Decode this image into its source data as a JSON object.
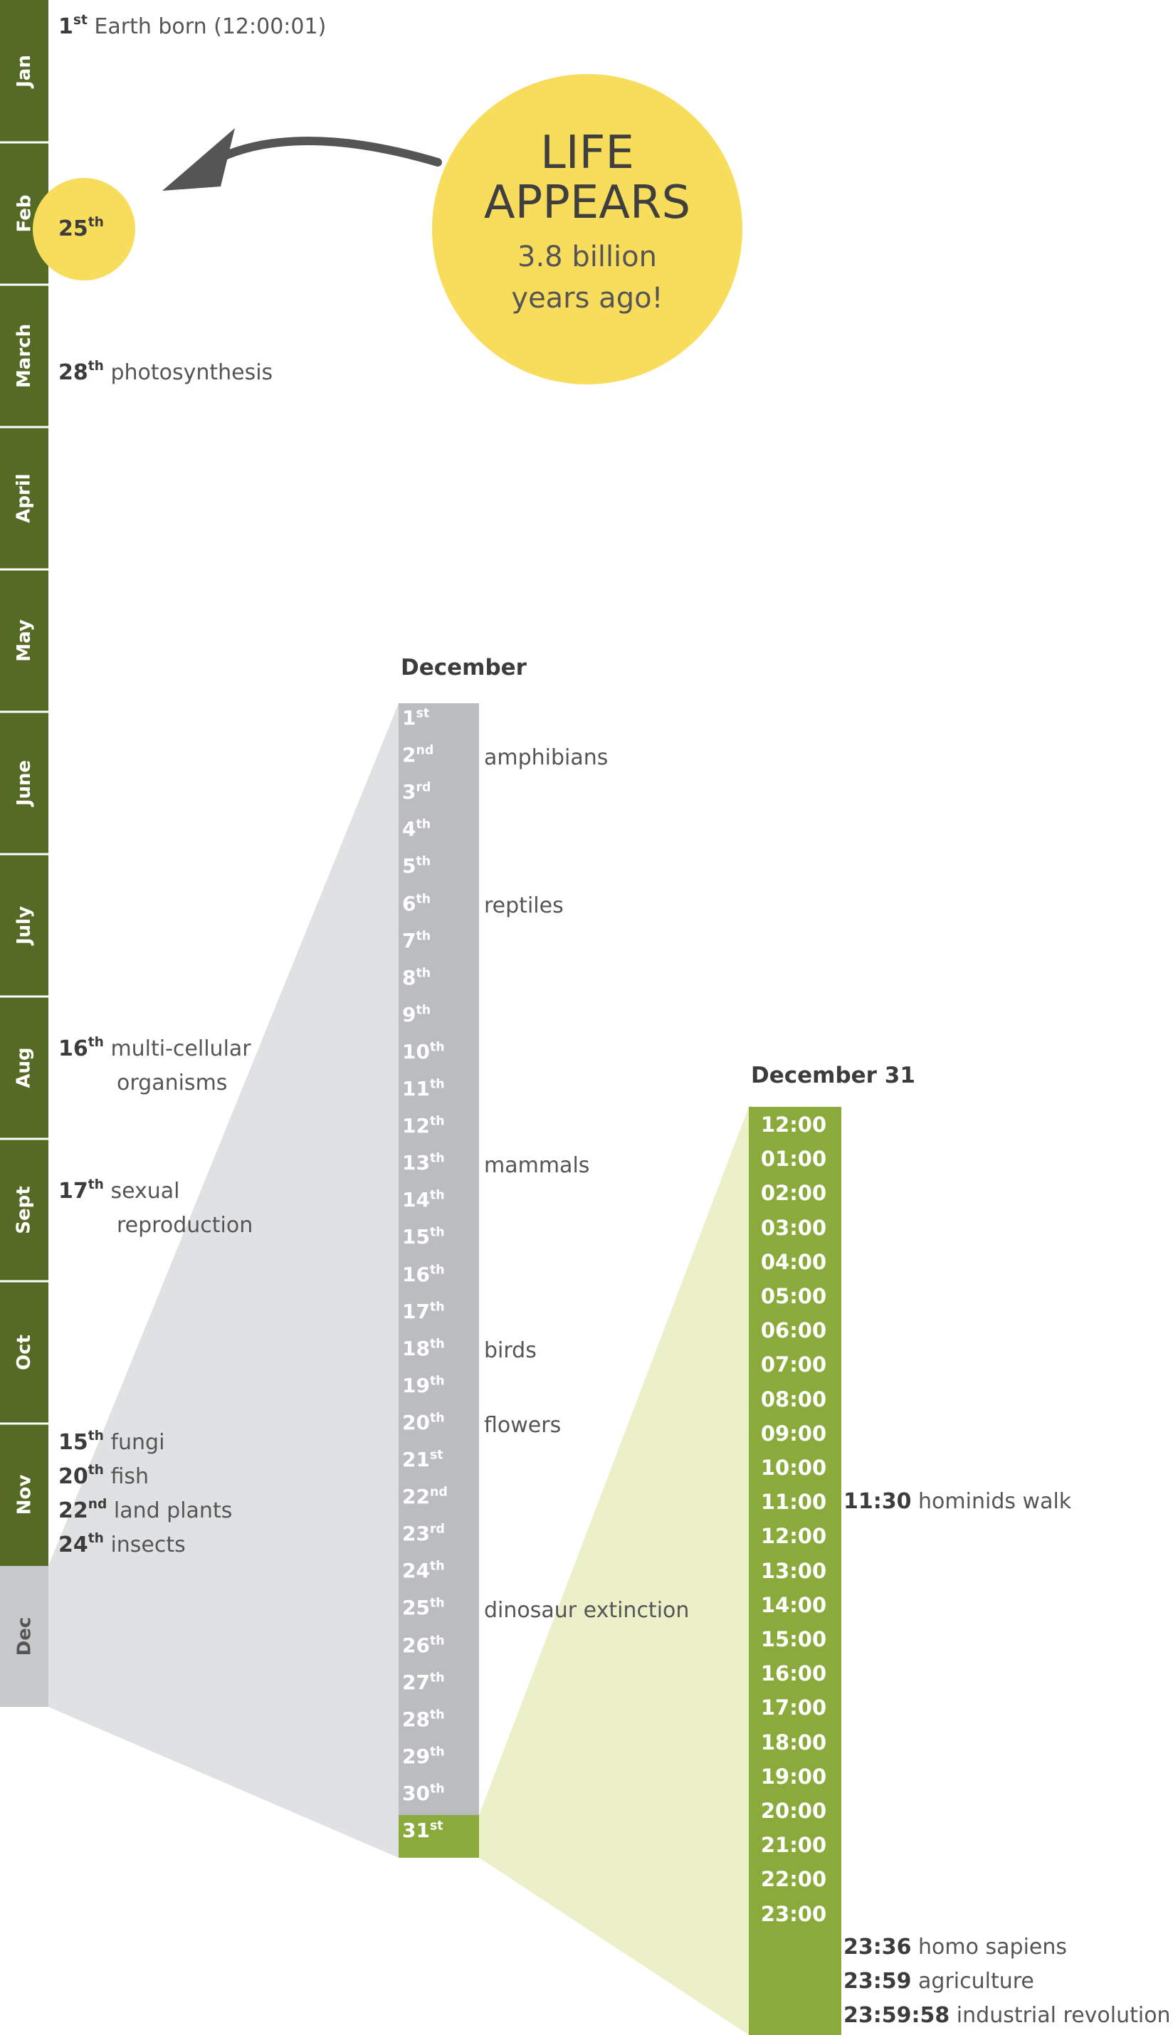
{
  "months": [
    {
      "label": "Jan"
    },
    {
      "label": "Feb"
    },
    {
      "label": "March"
    },
    {
      "label": "April"
    },
    {
      "label": "May"
    },
    {
      "label": "June"
    },
    {
      "label": "July"
    },
    {
      "label": "Aug"
    },
    {
      "label": "Sept"
    },
    {
      "label": "Oct"
    },
    {
      "label": "Nov"
    },
    {
      "label": "Dec"
    }
  ],
  "year_events": {
    "jan": {
      "day": "1",
      "suffix": "st",
      "text": "Earth born (12:00:01)"
    },
    "feb": {
      "day": "25",
      "suffix": "th"
    },
    "march": {
      "day": "28",
      "suffix": "th",
      "text": "photosynthesis"
    },
    "aug": {
      "day": "16",
      "suffix": "th",
      "text": "multi-cellular",
      "text2": "organisms"
    },
    "sept": {
      "day": "17",
      "suffix": "th",
      "text": "sexual",
      "text2": "reproduction"
    },
    "nov": [
      {
        "day": "15",
        "suffix": "th",
        "text": "fungi"
      },
      {
        "day": "20",
        "suffix": "th",
        "text": "fish"
      },
      {
        "day": "22",
        "suffix": "nd",
        "text": "land plants"
      },
      {
        "day": "24",
        "suffix": "th",
        "text": "insects"
      }
    ]
  },
  "bubble": {
    "line1": "LIFE",
    "line2": "APPEARS",
    "line3": "3.8 billion",
    "line4": "years ago!"
  },
  "december": {
    "title": "December",
    "days": [
      {
        "n": "1",
        "s": "st"
      },
      {
        "n": "2",
        "s": "nd"
      },
      {
        "n": "3",
        "s": "rd"
      },
      {
        "n": "4",
        "s": "th"
      },
      {
        "n": "5",
        "s": "th"
      },
      {
        "n": "6",
        "s": "th"
      },
      {
        "n": "7",
        "s": "th"
      },
      {
        "n": "8",
        "s": "th"
      },
      {
        "n": "9",
        "s": "th"
      },
      {
        "n": "10",
        "s": "th"
      },
      {
        "n": "11",
        "s": "th"
      },
      {
        "n": "12",
        "s": "th"
      },
      {
        "n": "13",
        "s": "th"
      },
      {
        "n": "14",
        "s": "th"
      },
      {
        "n": "15",
        "s": "th"
      },
      {
        "n": "16",
        "s": "th"
      },
      {
        "n": "17",
        "s": "th"
      },
      {
        "n": "18",
        "s": "th"
      },
      {
        "n": "19",
        "s": "th"
      },
      {
        "n": "20",
        "s": "th"
      },
      {
        "n": "21",
        "s": "st"
      },
      {
        "n": "22",
        "s": "nd"
      },
      {
        "n": "23",
        "s": "rd"
      },
      {
        "n": "24",
        "s": "th"
      },
      {
        "n": "25",
        "s": "th"
      },
      {
        "n": "26",
        "s": "th"
      },
      {
        "n": "27",
        "s": "th"
      },
      {
        "n": "28",
        "s": "th"
      },
      {
        "n": "29",
        "s": "th"
      },
      {
        "n": "30",
        "s": "th"
      },
      {
        "n": "31",
        "s": "st"
      }
    ],
    "events": {
      "amphibians": "amphibians",
      "reptiles": "reptiles",
      "mammals": "mammals",
      "birds": "birds",
      "flowers": "flowers",
      "dinosaur": "dinosaur extinction"
    }
  },
  "december31": {
    "title": "December 31",
    "hours": [
      "12:00",
      "01:00",
      "02:00",
      "03:00",
      "04:00",
      "05:00",
      "06:00",
      "07:00",
      "08:00",
      "09:00",
      "10:00",
      "11:00",
      "12:00",
      "13:00",
      "14:00",
      "15:00",
      "16:00",
      "17:00",
      "18:00",
      "19:00",
      "20:00",
      "21:00",
      "22:00",
      "23:00"
    ],
    "events": {
      "hominids": {
        "time": "11:30",
        "text": "hominids walk"
      },
      "sapiens": {
        "time": "23:36",
        "text": "homo sapiens"
      },
      "agriculture": {
        "time": "23:59",
        "text": "agriculture"
      },
      "industrial": {
        "time": "23:59:58",
        "text": "industrial revolution"
      }
    }
  },
  "colors": {
    "month_bar": "#556b25",
    "dec_bar": "#c7c9cb",
    "yellow": "#f8dc5c",
    "grey_funnel": "#e0e1e3",
    "dec_column": "#babcbf",
    "green_column": "#8aab3c",
    "green_funnel": "#ecf0c8",
    "arrow": "#555555"
  }
}
